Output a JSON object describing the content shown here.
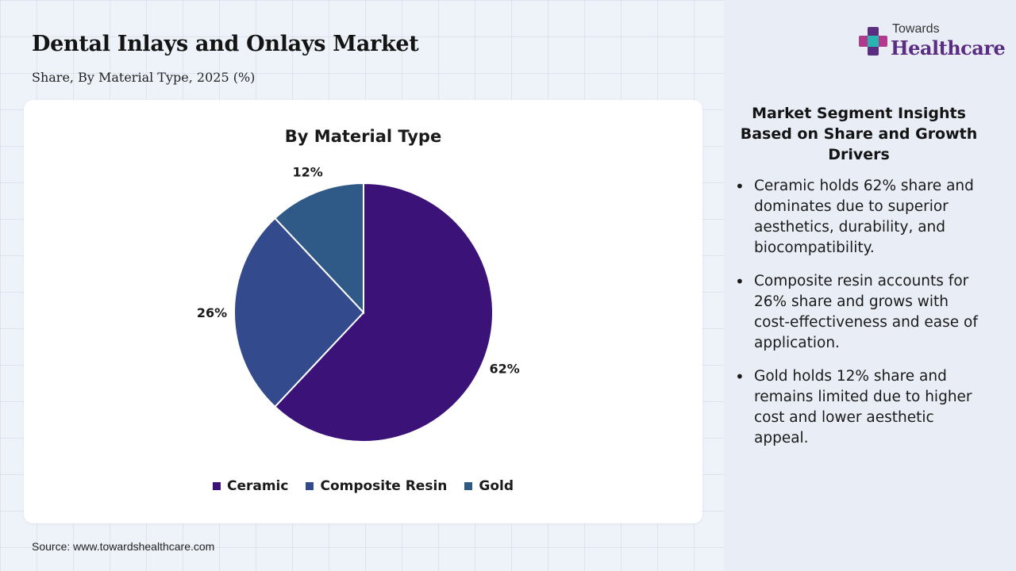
{
  "header": {
    "title": "Dental Inlays and Onlays Market",
    "subtitle": "Share, By Material Type, 2025 (%)"
  },
  "logo": {
    "small_text": "Towards",
    "big_text": "Healthcare",
    "colors": [
      "#5a2d82",
      "#2ab3b0",
      "#b03a8c"
    ]
  },
  "chart_data": {
    "type": "pie",
    "title": "By Material Type",
    "categories": [
      "Ceramic",
      "Composite Resin",
      "Gold"
    ],
    "values": [
      62,
      26,
      12
    ],
    "data_labels": [
      "62%",
      "26%",
      "12%"
    ],
    "colors": [
      "#3b1278",
      "#334a8c",
      "#2f5a88"
    ],
    "legend_position": "bottom"
  },
  "insights": {
    "title": "Market Segment Insights Based on Share and Growth Drivers",
    "items": [
      "Ceramic holds 62% share and dominates due to superior aesthetics, durability, and biocompatibility.",
      "Composite resin accounts for 26% share and grows with cost-effectiveness and ease of application.",
      "Gold holds 12% share and remains limited due to higher cost and lower aesthetic appeal."
    ]
  },
  "footer": {
    "source": "Source: www.towardshealthcare.com"
  }
}
